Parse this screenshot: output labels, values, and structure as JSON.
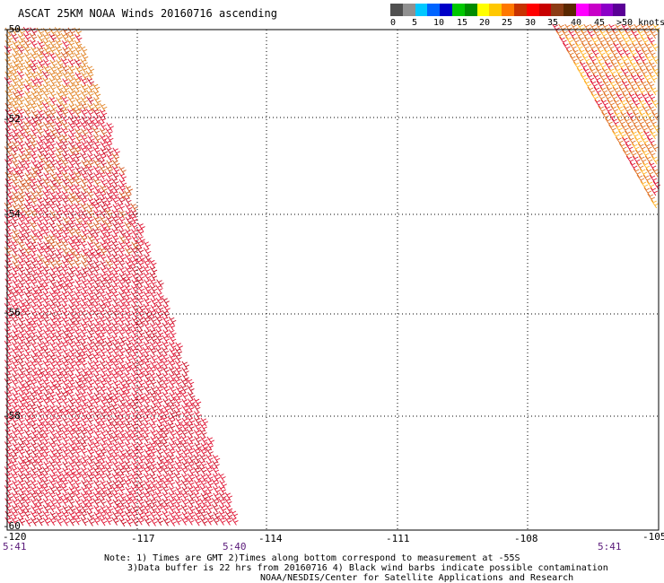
{
  "title": "ASCAT 25KM NOAA Winds 20160716 ascending",
  "legend": {
    "units": "knots",
    "colors": [
      "#505050",
      "#909090",
      "#00c8ff",
      "#0064ff",
      "#0000c8",
      "#00c800",
      "#008c00",
      "#ffff00",
      "#ffc800",
      "#ff7800",
      "#c83200",
      "#ff0000",
      "#c80000",
      "#8c3c14",
      "#5a2800",
      "#ff00ff",
      "#c800c8",
      "#8c00c8",
      "#5a0096"
    ],
    "labels": [
      "0",
      "5",
      "10",
      "15",
      "20",
      "25",
      "30",
      "35",
      "40",
      "45",
      ">50 knots"
    ]
  },
  "map": {
    "lat_ticks": [
      "-50",
      "-52",
      "-54",
      "-56",
      "-58",
      "-60"
    ],
    "lon_ticks": [
      "-120",
      "-117",
      "-114",
      "-111",
      "-108",
      "-105"
    ],
    "times": [
      "5:41",
      "5:40",
      "5:41"
    ]
  },
  "notes": {
    "line1": "Note: 1) Times are GMT 2)Times along bottom correspond to measurement at -55S",
    "line2": "3)Data buffer is 22 hrs from 20160716 4) Black wind barbs indicate possible contamination",
    "line3": "NOAA/NESDIS/Center for Satellite Applications and Research"
  }
}
